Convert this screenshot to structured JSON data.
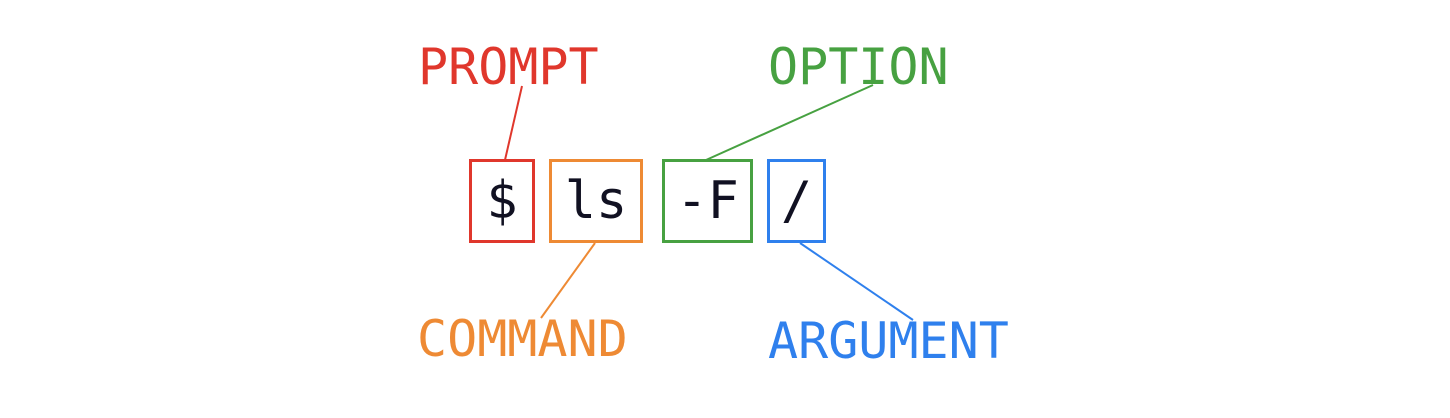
{
  "tokens": {
    "prompt": "$",
    "command": "ls",
    "option": "-F",
    "argument": "/"
  },
  "labels": {
    "prompt": "PROMPT",
    "option": "OPTION",
    "command": "COMMAND",
    "argument": "ARGUMENT"
  },
  "colors": {
    "prompt": "#e0372c",
    "command": "#ee8a34",
    "option": "#47a141",
    "argument": "#2f80ed",
    "token_text": "#111122"
  }
}
